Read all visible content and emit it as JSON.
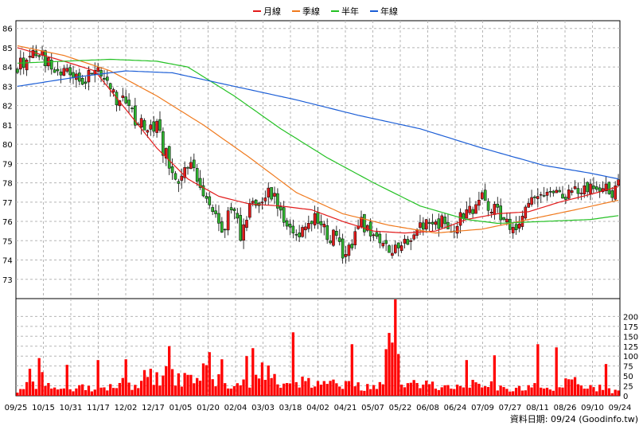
{
  "chart_data": [
    {
      "type": "candlestick",
      "legend": [
        {
          "label": "月線",
          "color": "#e21b1b"
        },
        {
          "label": "季線",
          "color": "#f07a1e"
        },
        {
          "label": "半年",
          "color": "#24c124"
        },
        {
          "label": "年線",
          "color": "#1c5ed6"
        }
      ],
      "ylim": [
        72,
        86.4
      ],
      "yticks": [
        "73",
        "74",
        "75",
        "76",
        "77",
        "78",
        "79",
        "80",
        "81",
        "82",
        "83",
        "84",
        "85",
        "86"
      ],
      "xticks": [
        "09/25",
        "10/15",
        "10/31",
        "11/17",
        "12/02",
        "12/17",
        "01/05",
        "01/20",
        "02/04",
        "03/03",
        "03/18",
        "04/02",
        "04/21",
        "05/07",
        "05/22",
        "06/08",
        "06/24",
        "07/09",
        "07/27",
        "08/11",
        "08/26",
        "09/10",
        "09/24"
      ],
      "colors": {
        "up": "#e21b1b",
        "down": "#2fb32f",
        "grid": "#b5b5b5",
        "volume": "#ff0000"
      },
      "price_path": [
        [
          0,
          84.0
        ],
        [
          5,
          84.8
        ],
        [
          10,
          84.2
        ],
        [
          15,
          83.9
        ],
        [
          18,
          83.6
        ],
        [
          22,
          83.5
        ],
        [
          26,
          83.6
        ],
        [
          28,
          83.1
        ],
        [
          33,
          82.3
        ],
        [
          36,
          82.1
        ],
        [
          38,
          81.0
        ],
        [
          41,
          80.9
        ],
        [
          45,
          80.8
        ],
        [
          47,
          79.8
        ],
        [
          50,
          78.6
        ],
        [
          52,
          77.9
        ],
        [
          55,
          78.8
        ],
        [
          58,
          78.4
        ],
        [
          60,
          77.2
        ],
        [
          63,
          76.9
        ],
        [
          66,
          75.5
        ],
        [
          69,
          76.6
        ],
        [
          72,
          75.4
        ],
        [
          75,
          76.5
        ],
        [
          78,
          77.2
        ],
        [
          81,
          77.9
        ],
        [
          84,
          76.7
        ],
        [
          87,
          75.8
        ],
        [
          90,
          75.3
        ],
        [
          93,
          75.8
        ],
        [
          96,
          76.0
        ],
        [
          99,
          75.6
        ],
        [
          102,
          75.2
        ],
        [
          105,
          74.5
        ],
        [
          108,
          74.9
        ],
        [
          111,
          75.8
        ],
        [
          114,
          75.2
        ],
        [
          117,
          75.0
        ],
        [
          120,
          74.8
        ],
        [
          123,
          74.7
        ],
        [
          126,
          75.2
        ],
        [
          129,
          75.4
        ],
        [
          132,
          75.7
        ],
        [
          135,
          75.9
        ],
        [
          138,
          76.0
        ],
        [
          141,
          75.7
        ],
        [
          144,
          76.3
        ],
        [
          147,
          76.8
        ],
        [
          150,
          77.2
        ],
        [
          153,
          76.7
        ],
        [
          156,
          76.5
        ],
        [
          159,
          75.6
        ],
        [
          162,
          76.0
        ],
        [
          165,
          76.8
        ],
        [
          168,
          77.2
        ],
        [
          171,
          77.4
        ],
        [
          174,
          77.6
        ],
        [
          177,
          77.3
        ],
        [
          180,
          77.5
        ],
        [
          183,
          77.7
        ],
        [
          186,
          77.6
        ],
        [
          189,
          77.7
        ],
        [
          193,
          77.6
        ],
        [
          194,
          77.8
        ]
      ],
      "moving_averages": {
        "月線": [
          [
            0,
            85.0
          ],
          [
            15,
            84.3
          ],
          [
            25,
            83.8
          ],
          [
            35,
            81.8
          ],
          [
            45,
            79.8
          ],
          [
            55,
            78.2
          ],
          [
            65,
            77.3
          ],
          [
            75,
            76.9
          ],
          [
            85,
            76.8
          ],
          [
            95,
            76.6
          ],
          [
            105,
            76.0
          ],
          [
            115,
            75.5
          ],
          [
            125,
            75.4
          ],
          [
            135,
            75.5
          ],
          [
            145,
            76.1
          ],
          [
            155,
            76.4
          ],
          [
            165,
            76.5
          ],
          [
            175,
            77.0
          ],
          [
            185,
            77.4
          ],
          [
            194,
            77.8
          ]
        ],
        "季線": [
          [
            0,
            85.1
          ],
          [
            15,
            84.6
          ],
          [
            30,
            83.8
          ],
          [
            45,
            82.5
          ],
          [
            60,
            81.0
          ],
          [
            75,
            79.3
          ],
          [
            90,
            77.5
          ],
          [
            105,
            76.4
          ],
          [
            120,
            75.8
          ],
          [
            135,
            75.4
          ],
          [
            150,
            75.6
          ],
          [
            165,
            76.1
          ],
          [
            180,
            76.6
          ],
          [
            194,
            77.1
          ]
        ],
        "半年": [
          [
            0,
            84.2
          ],
          [
            15,
            84.3
          ],
          [
            30,
            84.4
          ],
          [
            45,
            84.3
          ],
          [
            55,
            84.0
          ],
          [
            70,
            82.5
          ],
          [
            85,
            80.8
          ],
          [
            100,
            79.3
          ],
          [
            115,
            78.0
          ],
          [
            130,
            76.8
          ],
          [
            145,
            76.1
          ],
          [
            155,
            75.9
          ],
          [
            170,
            76.0
          ],
          [
            185,
            76.1
          ],
          [
            194,
            76.3
          ]
        ],
        "年線": [
          [
            0,
            83.0
          ],
          [
            20,
            83.5
          ],
          [
            35,
            83.8
          ],
          [
            50,
            83.7
          ],
          [
            70,
            83.0
          ],
          [
            90,
            82.3
          ],
          [
            110,
            81.5
          ],
          [
            130,
            80.8
          ],
          [
            150,
            79.8
          ],
          [
            170,
            78.9
          ],
          [
            185,
            78.5
          ],
          [
            194,
            78.2
          ]
        ]
      },
      "candles": 195
    },
    {
      "type": "bar",
      "ylim": [
        0,
        245
      ],
      "yticks": [
        "0",
        "25",
        "50",
        "75",
        "100",
        "125",
        "150",
        "175",
        "200"
      ],
      "volume_path": [
        [
          0,
          12
        ],
        [
          5,
          32
        ],
        [
          9,
          48
        ],
        [
          10,
          30
        ],
        [
          14,
          12
        ],
        [
          20,
          18
        ],
        [
          24,
          22
        ],
        [
          28,
          18
        ],
        [
          32,
          34
        ],
        [
          36,
          30
        ],
        [
          40,
          30
        ],
        [
          41,
          58
        ],
        [
          44,
          26
        ],
        [
          46,
          56
        ],
        [
          50,
          44
        ],
        [
          54,
          46
        ],
        [
          57,
          30
        ],
        [
          60,
          62
        ],
        [
          63,
          48
        ],
        [
          67,
          28
        ],
        [
          72,
          26
        ],
        [
          77,
          42
        ],
        [
          79,
          65
        ],
        [
          83,
          36
        ],
        [
          86,
          42
        ],
        [
          89,
          28
        ],
        [
          92,
          40
        ],
        [
          96,
          28
        ],
        [
          99,
          24
        ],
        [
          102,
          30
        ],
        [
          108,
          28
        ],
        [
          112,
          22
        ],
        [
          115,
          18
        ],
        [
          118,
          28
        ],
        [
          121,
          215
        ],
        [
          124,
          22
        ],
        [
          128,
          26
        ],
        [
          131,
          24
        ],
        [
          135,
          28
        ],
        [
          139,
          22
        ],
        [
          143,
          18
        ],
        [
          147,
          26
        ],
        [
          151,
          40
        ],
        [
          153,
          28
        ],
        [
          157,
          20
        ],
        [
          160,
          18
        ],
        [
          165,
          24
        ],
        [
          169,
          18
        ],
        [
          174,
          20
        ],
        [
          178,
          34
        ],
        [
          183,
          26
        ],
        [
          188,
          20
        ],
        [
          192,
          14
        ],
        [
          194,
          10
        ]
      ],
      "volume_spikes": [
        [
          4,
          68
        ],
        [
          7,
          95
        ],
        [
          16,
          78
        ],
        [
          26,
          90
        ],
        [
          35,
          92
        ],
        [
          43,
          68
        ],
        [
          49,
          125
        ],
        [
          62,
          110
        ],
        [
          66,
          92
        ],
        [
          74,
          100
        ],
        [
          76,
          120
        ],
        [
          89,
          160
        ],
        [
          108,
          130
        ],
        [
          122,
          250
        ],
        [
          145,
          90
        ],
        [
          154,
          102
        ],
        [
          168,
          130
        ],
        [
          174,
          122
        ],
        [
          190,
          80
        ]
      ]
    }
  ],
  "footer": {
    "date_text": "資料日期: 09/24  (Goodinfo.tw)"
  }
}
